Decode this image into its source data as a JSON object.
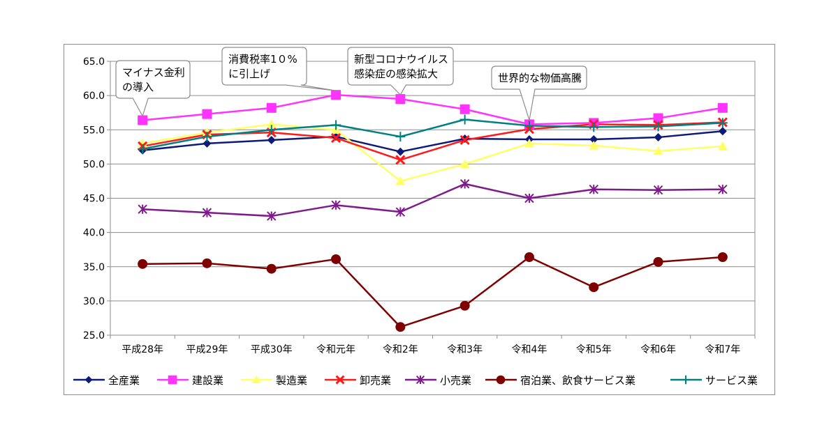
{
  "chart_data": {
    "type": "line",
    "title": "",
    "xlabel": "",
    "ylabel": "",
    "ylim": [
      25.0,
      65.0
    ],
    "yticks": [
      "65.0",
      "60.0",
      "55.0",
      "50.0",
      "45.0",
      "40.0",
      "35.0",
      "30.0",
      "25.0"
    ],
    "grid": true,
    "legend_position": "bottom",
    "categories": [
      "平成28年",
      "平成29年",
      "平成30年",
      "令和元年",
      "令和2年",
      "令和3年",
      "令和4年",
      "令和5年",
      "令和6年",
      "令和7年"
    ],
    "series": [
      {
        "name": "全産業",
        "color": "#0d1a7a",
        "marker": "diamond",
        "values": [
          52.0,
          53.0,
          53.5,
          54.0,
          51.8,
          53.7,
          53.6,
          53.6,
          53.9,
          54.8
        ]
      },
      {
        "name": "建設業",
        "color": "#ff33ff",
        "marker": "square",
        "values": [
          56.4,
          57.3,
          58.2,
          60.1,
          59.5,
          58.0,
          55.8,
          56.0,
          56.7,
          58.2
        ]
      },
      {
        "name": "製造業",
        "color": "#ffff66",
        "marker": "triangle",
        "values": [
          53.0,
          54.6,
          55.8,
          55.0,
          47.5,
          50.0,
          53.0,
          52.7,
          51.9,
          52.6
        ]
      },
      {
        "name": "卸売業",
        "color": "#ff1a1a",
        "marker": "x",
        "values": [
          52.6,
          54.3,
          54.6,
          53.8,
          50.6,
          53.5,
          55.1,
          55.8,
          55.7,
          56.1
        ]
      },
      {
        "name": "小売業",
        "color": "#7f1a8c",
        "marker": "star",
        "values": [
          43.4,
          42.9,
          42.4,
          44.0,
          43.0,
          47.1,
          45.0,
          46.3,
          46.2,
          46.3
        ]
      },
      {
        "name": "宿泊業、飲食サービス業",
        "color": "#7f0000",
        "marker": "circle",
        "values": [
          35.4,
          35.5,
          34.7,
          36.1,
          26.2,
          29.3,
          36.4,
          32.0,
          35.7,
          36.4
        ]
      },
      {
        "name": "サービス業",
        "color": "#008080",
        "marker": "plus",
        "values": [
          52.2,
          54.0,
          55.0,
          55.7,
          54.0,
          56.5,
          55.6,
          55.4,
          55.5,
          56.0
        ]
      }
    ],
    "annotations": [
      {
        "lines": [
          "マイナス金利",
          "の導入"
        ],
        "category": "平成28年"
      },
      {
        "lines": [
          "消費税率1０%",
          "に引上げ"
        ],
        "category": "令和元年"
      },
      {
        "lines": [
          "新型コロナウイルス",
          "感染症の感染拡大"
        ],
        "category": "令和2年"
      },
      {
        "lines": [
          "世界的な物価高騰"
        ],
        "category": "令和4年"
      }
    ]
  }
}
